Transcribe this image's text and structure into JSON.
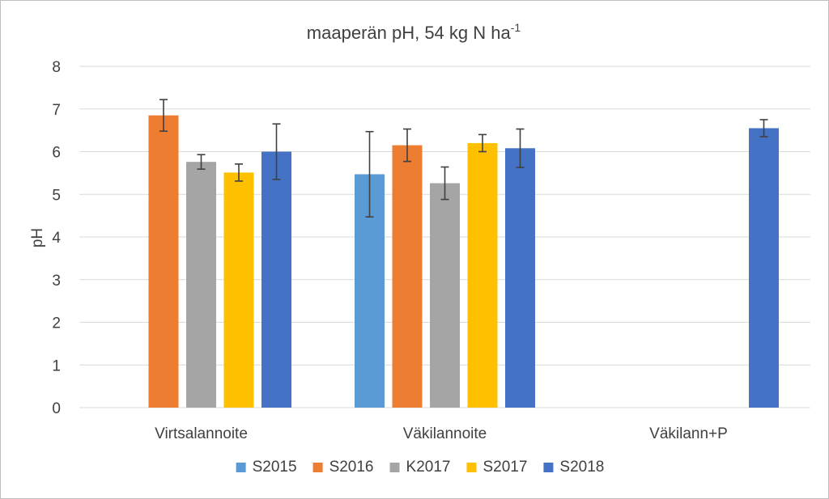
{
  "chart_data": {
    "type": "bar",
    "title": "maaperän pH, 54 kg N ha",
    "title_superscript": "-1",
    "ylabel": "pH",
    "xlabel": "",
    "ylim": [
      0,
      8
    ],
    "yticks": [
      "0",
      "1",
      "2",
      "3",
      "4",
      "5",
      "6",
      "7",
      "8"
    ],
    "grid": true,
    "legend_position": "bottom",
    "categories": [
      "Virtsalannoite",
      "Väkilannoite",
      "Väkilann+P"
    ],
    "series": [
      {
        "name": "S2015",
        "color": "#5b9bd5",
        "values": [
          null,
          5.47,
          null
        ],
        "errors": [
          null,
          1.0,
          null
        ]
      },
      {
        "name": "S2016",
        "color": "#ed7d31",
        "values": [
          6.85,
          6.15,
          null
        ],
        "errors": [
          0.37,
          0.38,
          null
        ]
      },
      {
        "name": "K2017",
        "color": "#a5a5a5",
        "values": [
          5.76,
          5.26,
          null
        ],
        "errors": [
          0.17,
          0.38,
          null
        ]
      },
      {
        "name": "S2017",
        "color": "#ffc000",
        "values": [
          5.51,
          6.2,
          null
        ],
        "errors": [
          0.2,
          0.2,
          null
        ]
      },
      {
        "name": "S2018",
        "color": "#4472c4",
        "values": [
          6.0,
          6.08,
          6.55
        ],
        "errors": [
          0.65,
          0.45,
          0.2
        ]
      }
    ]
  }
}
